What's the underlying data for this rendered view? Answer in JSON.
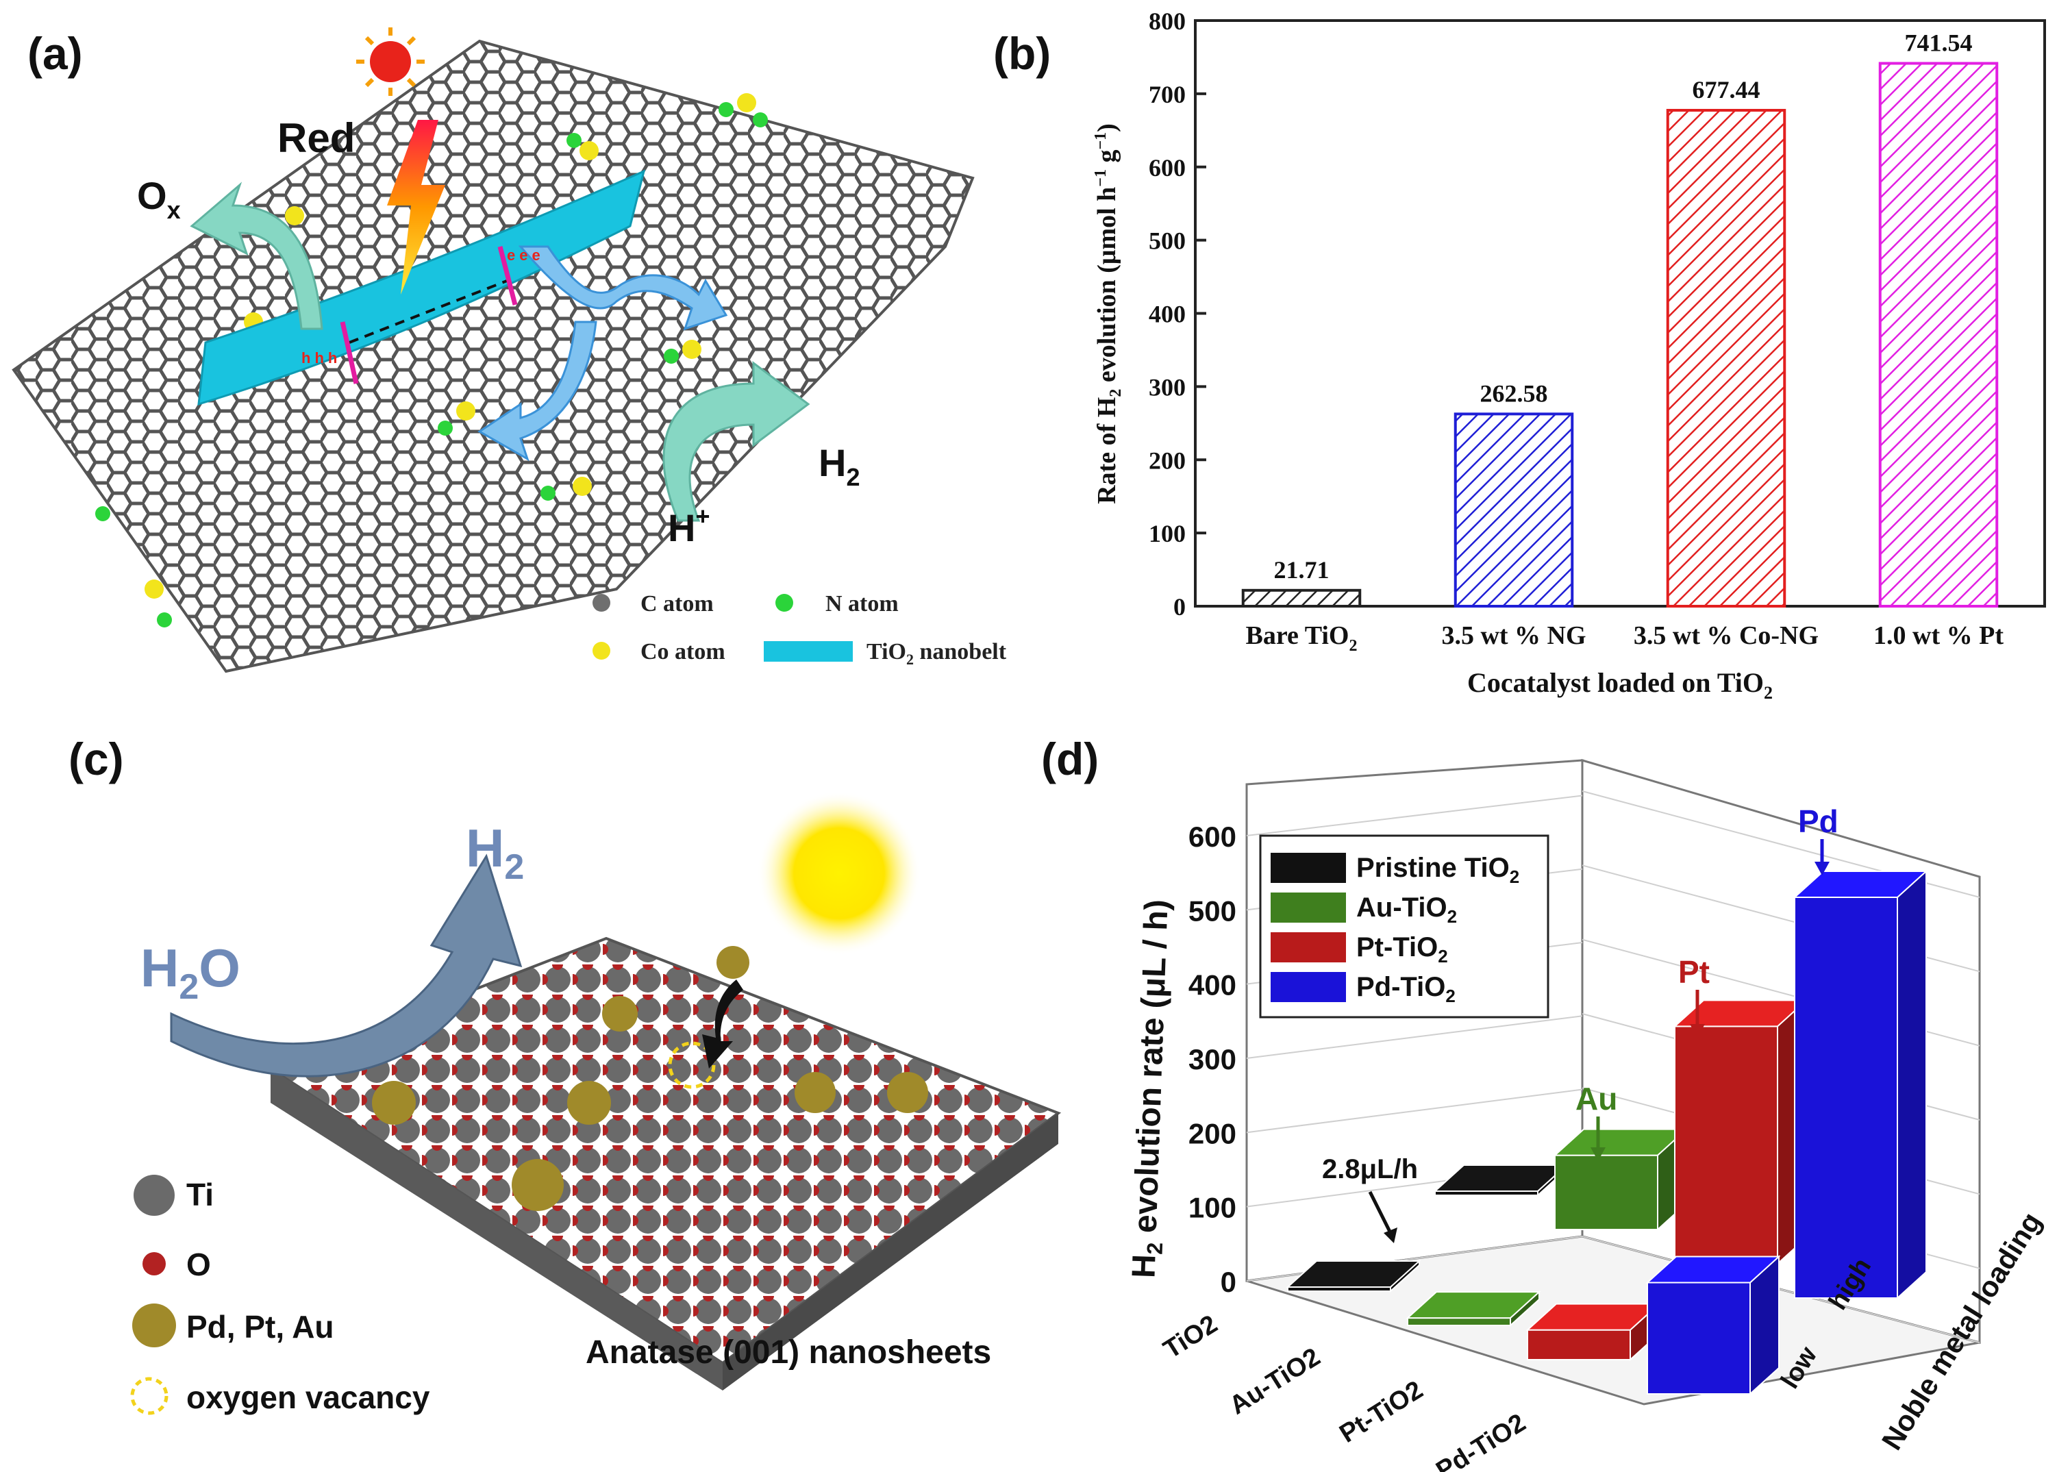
{
  "panels": {
    "a": {
      "letter": "(a)",
      "labels": {
        "red": "Red",
        "ox_main": "O",
        "ox_sub": "x",
        "h2_main": "H",
        "h2_sub": "2",
        "hplus_main": "H",
        "hplus_sup": "+",
        "electron": "e",
        "hole": "h"
      },
      "legend": [
        {
          "label": "C atom",
          "color": "#6f6f6f"
        },
        {
          "label": "N atom",
          "color": "#2bd43a"
        },
        {
          "label": "Co atom",
          "color": "#f2e41c"
        },
        {
          "label_main": "TiO",
          "label_sub": "2",
          "label_tail": " nanobelt",
          "color": "#19c3df"
        }
      ]
    },
    "b": {
      "letter": "(b)"
    },
    "c": {
      "letter": "(c)",
      "labels": {
        "h2_main": "H",
        "h2_sub": "2",
        "h2o_h": "H",
        "h2o_sub": "2",
        "h2o_o": "O",
        "caption": "Anatase (001) nanosheets"
      },
      "legend": [
        {
          "label": "Ti",
          "color": "#6a6a6a"
        },
        {
          "label": "O",
          "color": "#b22222"
        },
        {
          "label": "Pd, Pt, Au",
          "color": "#a08a2a"
        },
        {
          "label": "oxygen vacancy",
          "color": "#f2d21c"
        }
      ]
    },
    "d": {
      "letter": "(d)"
    }
  },
  "chart_data": [
    {
      "type": "bar",
      "panel": "b",
      "categories_main": [
        "Bare TiO",
        "3.5 wt % NG",
        "3.5 wt % Co-NG",
        "1.0 wt % Pt"
      ],
      "categories_sub": [
        "2",
        "",
        "",
        ""
      ],
      "values": [
        21.71,
        262.58,
        677.44,
        741.54
      ],
      "value_labels": [
        "21.71",
        "262.58",
        "677.44",
        "741.54"
      ],
      "colors": [
        "#222222",
        "#1f1fd6",
        "#e21f1f",
        "#e21fe2"
      ],
      "ylabel_parts": [
        "Rate of H",
        "2",
        " evolution (μmol h",
        "−1",
        " g",
        "−1",
        ")"
      ],
      "xlabel_main": "Cocatalyst loaded on TiO",
      "xlabel_sub": "2",
      "ylim": [
        0,
        800
      ],
      "yticks": [
        0,
        100,
        200,
        300,
        400,
        500,
        600,
        700,
        800
      ],
      "pattern": "hatched"
    },
    {
      "type": "bar",
      "panel": "d",
      "projection": "3d",
      "x_categories": [
        "TiO2",
        "Au-TiO2",
        "Pt-TiO2",
        "Pd-TiO2"
      ],
      "depth_categories": [
        "low",
        "high"
      ],
      "depth_axis_label": "Noble metal loading",
      "series": [
        {
          "name_main": "Pristine TiO",
          "name_sub": "2",
          "color": "#111111",
          "values": {
            "low": 2.8,
            "high": 2.8
          }
        },
        {
          "name_main": "Au-TiO",
          "name_sub": "2",
          "color": "#3f7f1e",
          "values": {
            "low": 10,
            "high": 100
          }
        },
        {
          "name_main": "Pt-TiO",
          "name_sub": "2",
          "color": "#b81b1b",
          "values": {
            "low": 40,
            "high": 320
          }
        },
        {
          "name_main": "Pd-TiO",
          "name_sub": "2",
          "color": "#1a12d8",
          "values": {
            "low": 150,
            "high": 540
          }
        }
      ],
      "ylabel_pre": "H",
      "ylabel_sub": "2",
      "ylabel_post": " evolution rate (μL / h)",
      "zlim": [
        0,
        600
      ],
      "zticks": [
        0,
        100,
        200,
        300,
        400,
        500,
        600
      ],
      "annotations": [
        "2.8μL/h",
        "Au",
        "Pt",
        "Pd"
      ]
    }
  ]
}
